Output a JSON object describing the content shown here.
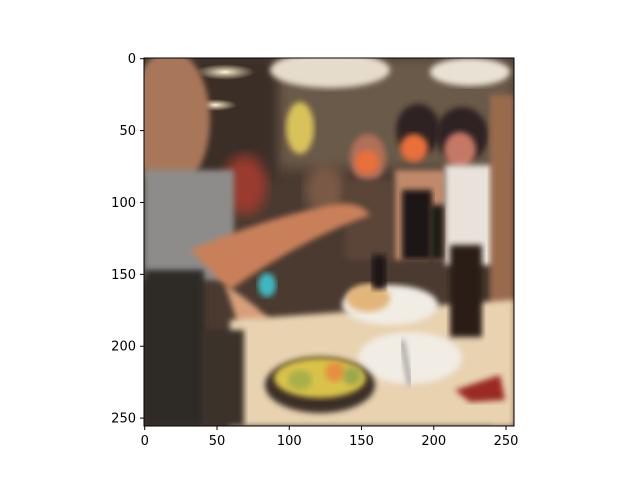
{
  "figure": {
    "x_axis": {
      "ticks": [
        0,
        50,
        100,
        150,
        200,
        250
      ],
      "range": [
        -0.5,
        255.5
      ]
    },
    "y_axis": {
      "ticks": [
        0,
        50,
        100,
        150,
        200,
        250
      ],
      "range": [
        255.5,
        -0.5
      ],
      "inverted": true
    },
    "image": {
      "description_icon": "photo-icon",
      "colors": {
        "background_dark": "#2b2420",
        "warm_skin": "#c9805a",
        "table_cream": "#e8d2b0",
        "plate_white": "#f1ece4",
        "drink_dark": "#2a1e18",
        "bowl_yellow": "#d9c24a",
        "ceiling_light": "#f4e3b6",
        "orange_mask": "#e8703a"
      }
    },
    "frame_color": "#000000"
  }
}
